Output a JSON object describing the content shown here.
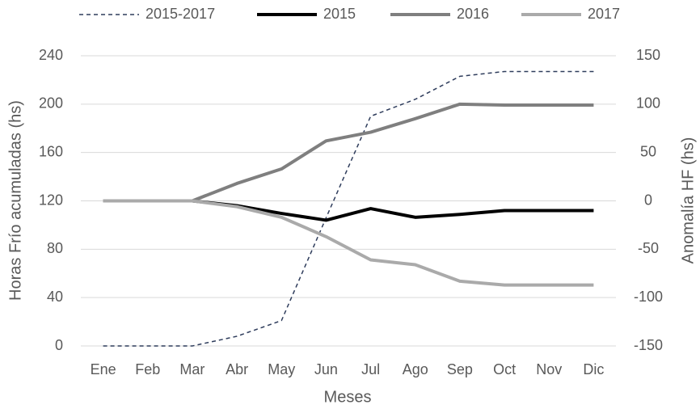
{
  "chart_data": {
    "type": "line",
    "x_label": "Meses",
    "y_label": "Horas Frío acumuladas (hs)",
    "y2_label": "Anomalía HF (hs)",
    "categories": [
      "Ene",
      "Feb",
      "Mar",
      "Abr",
      "May",
      "Jun",
      "Jul",
      "Ago",
      "Sep",
      "Oct",
      "Nov",
      "Dic"
    ],
    "ylim": [
      0,
      240
    ],
    "yticks": [
      0,
      40,
      80,
      120,
      160,
      200,
      240
    ],
    "y2lim": [
      -150,
      150
    ],
    "y2ticks": [
      -150,
      -100,
      -50,
      0,
      50,
      100,
      150
    ],
    "grid": true,
    "legend": "top",
    "series": [
      {
        "name": "2015-2017",
        "color": "#2f3d5c",
        "dashed": true,
        "values": [
          0,
          0,
          0,
          8,
          21,
          106,
          190,
          204,
          223,
          227,
          227,
          227
        ]
      },
      {
        "name": "2015",
        "color": "#000000",
        "axis": "y2",
        "values": [
          0,
          0,
          0,
          -5,
          -13,
          -20,
          -8,
          -17,
          -14,
          -10,
          -10,
          -10
        ]
      },
      {
        "name": "2016",
        "color": "#7f7f7f",
        "axis": "y2",
        "values": [
          0,
          0,
          0,
          18,
          33,
          62,
          71,
          85,
          100,
          99,
          99,
          99
        ]
      },
      {
        "name": "2017",
        "color": "#aaaaaa",
        "axis": "y2",
        "values": [
          0,
          0,
          0,
          -6,
          -17,
          -37,
          -61,
          -66,
          -83,
          -87,
          -87,
          -87
        ]
      }
    ]
  }
}
